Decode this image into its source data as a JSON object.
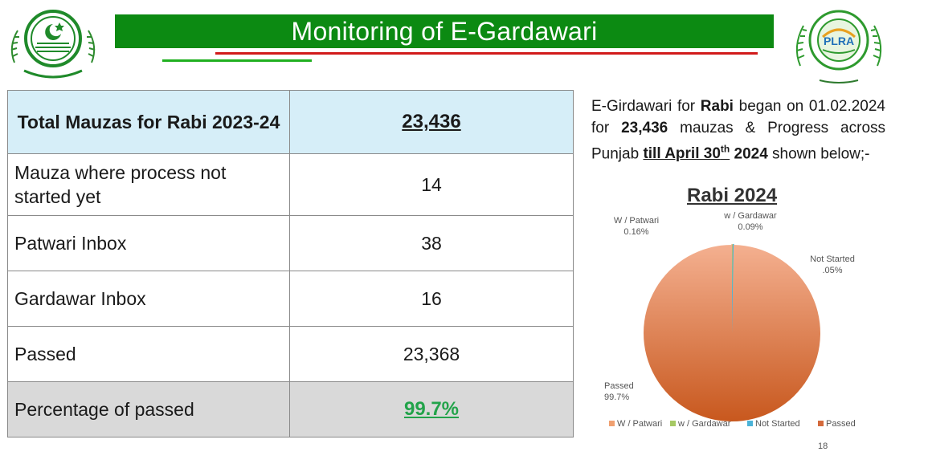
{
  "header": {
    "title": "Monitoring of E-Gardawari",
    "right_logo_text": "PLRA"
  },
  "table": {
    "head": {
      "label": "Total Mauzas for Rabi 2023-24",
      "value": "23,436"
    },
    "rows": [
      {
        "label": "Mauza where process not started yet",
        "value": "14"
      },
      {
        "label": "Patwari Inbox",
        "value": "38"
      },
      {
        "label": "Gardawar Inbox",
        "value": "16"
      },
      {
        "label": "Passed",
        "value": "23,368"
      }
    ],
    "foot": {
      "label": "Percentage of passed",
      "value": "99.7%"
    }
  },
  "description": {
    "p1": "E-Girdawari for",
    "p1_bold": "Rabi",
    "p2": "began on 01.02.2024 for",
    "p2_bold": "23,436",
    "p3": "mauzas & Progress across Punjab",
    "p3_bold": "till April 30",
    "p3_sup": "th",
    "p3_bold2": " 2024",
    "p4": "shown below;-"
  },
  "chart_data": {
    "type": "pie",
    "title": "Rabi 2024",
    "slices": [
      {
        "name": "W / Patwari",
        "value": 0.16,
        "label": "W / Patwari",
        "pct_label": "0.16%",
        "color": "#f0a070"
      },
      {
        "name": "w / Gardawar",
        "value": 0.09,
        "label": "w / Gardawar",
        "pct_label": "0.09%",
        "color": "#a6c964"
      },
      {
        "name": "Not Started",
        "value": 0.05,
        "label": "Not Started",
        "pct_label": ".05%",
        "color": "#4bb3d8"
      },
      {
        "name": "Passed",
        "value": 99.7,
        "label": "Passed",
        "pct_label": "99.7%",
        "color": "#d46a3c"
      }
    ],
    "legend_position": "bottom"
  },
  "page_number": "18"
}
